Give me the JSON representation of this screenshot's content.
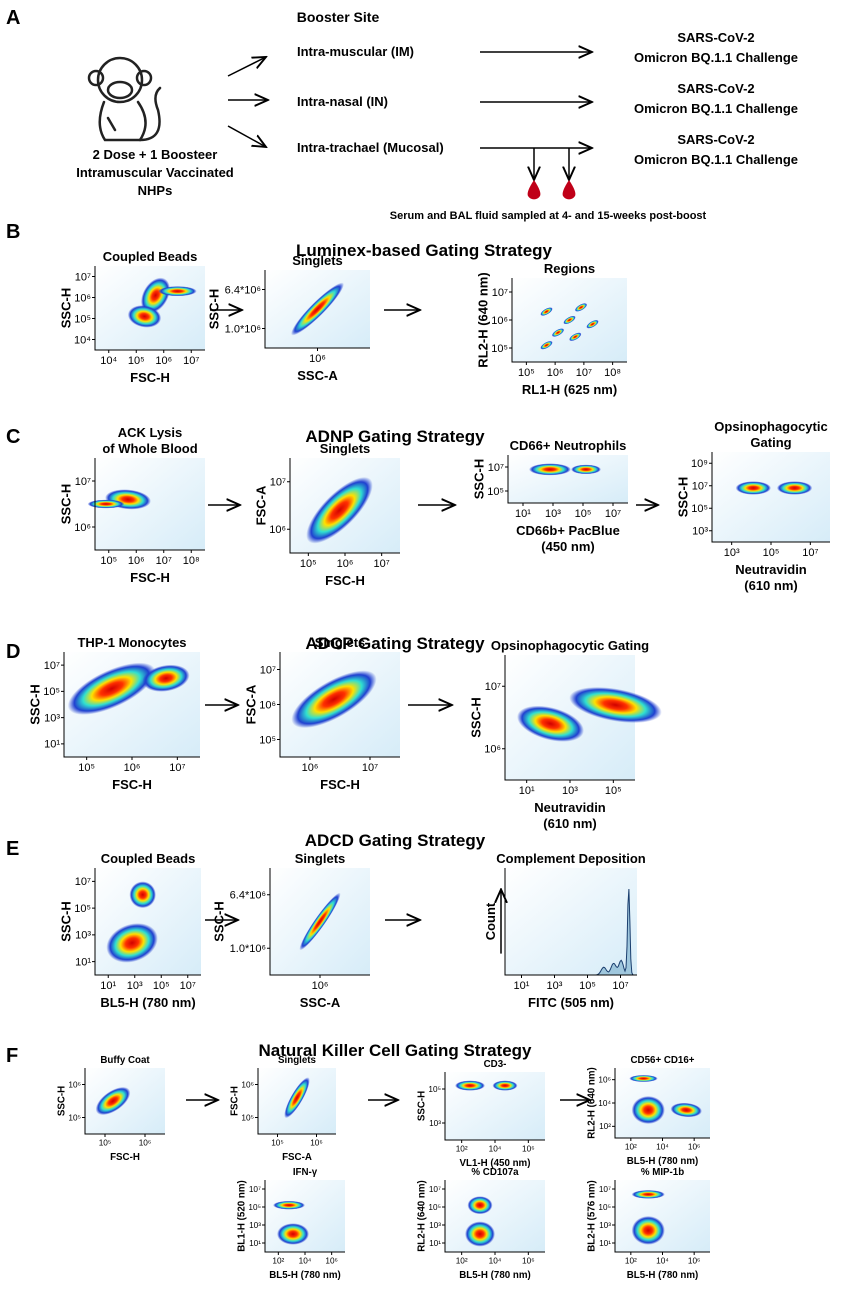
{
  "panel_a": {
    "label": "A",
    "booster_site": "Booster Site",
    "routes": [
      "Intra-muscular (IM)",
      "Intra-nasal (IN)",
      "Intra-trachael (Mucosal)"
    ],
    "challenge": [
      [
        "SARS-CoV-2",
        "Omicron BQ.1.1 Challenge"
      ],
      [
        "SARS-CoV-2",
        "Omicron BQ.1.1 Challenge"
      ],
      [
        "SARS-CoV-2",
        "Omicron BQ.1.1 Challenge"
      ]
    ],
    "subject": [
      "2 Dose + 1 Boosteer",
      "Intramuscular Vaccinated",
      "NHPs"
    ],
    "sampling": "Serum and BAL fluid sampled at 4- and 15-weeks post-boost"
  },
  "panels": [
    {
      "label": "B",
      "title": "Luminex-based Gating Strategy",
      "plots": [
        {
          "title": [
            "Coupled Beads"
          ],
          "xlabel": [
            "FSC-H"
          ],
          "ylabel": "SSC-H",
          "xticks": [
            "10⁴",
            "10⁵",
            "10⁶",
            "10⁷"
          ],
          "yticks": [
            "10⁷",
            "10⁶",
            "10⁵",
            "10⁴"
          ]
        },
        {
          "title": [
            "Singlets"
          ],
          "xlabel": [
            "SSC-A"
          ],
          "ylabel": "SSC-H",
          "xticks": [
            "10⁶"
          ],
          "yticks": [
            "6.4*10⁶",
            "1.0*10⁶"
          ]
        },
        {
          "title": [
            "Regions"
          ],
          "xlabel": [
            "RL1-H (625 nm)"
          ],
          "ylabel": "RL2-H (640 nm)",
          "xticks": [
            "10⁵",
            "10⁶",
            "10⁷",
            "10⁸"
          ],
          "yticks": [
            "10⁷",
            "10⁶",
            "10⁵"
          ]
        }
      ]
    },
    {
      "label": "C",
      "title": "ADNP Gating Strategy",
      "plots": [
        {
          "title": [
            "ACK Lysis",
            "of Whole Blood"
          ],
          "xlabel": [
            "FSC-H"
          ],
          "ylabel": "SSC-H",
          "xticks": [
            "10⁵",
            "10⁶",
            "10⁷",
            "10⁸"
          ],
          "yticks": [
            "10⁷",
            "10⁶"
          ]
        },
        {
          "title": [
            "Singlets"
          ],
          "xlabel": [
            "FSC-H"
          ],
          "ylabel": "FSC-A",
          "xticks": [
            "10⁵",
            "10⁶",
            "10⁷"
          ],
          "yticks": [
            "10⁷",
            "10⁶"
          ]
        },
        {
          "title": [
            "CD66+ Neutrophils"
          ],
          "xlabel": [
            "CD66b+ PacBlue",
            "(450 nm)"
          ],
          "ylabel": "SSC-H",
          "xticks": [
            "10¹",
            "10³",
            "10⁵",
            "10⁷"
          ],
          "yticks": [
            "10⁷",
            "10⁵"
          ]
        },
        {
          "title": [
            "Opsinophagocytic",
            "Gating"
          ],
          "xlabel": [
            "Neutravidin",
            "(610 nm)"
          ],
          "ylabel": "SSC-H",
          "xticks": [
            "10³",
            "10⁵",
            "10⁷"
          ],
          "yticks": [
            "10⁹",
            "10⁷",
            "10⁵",
            "10³"
          ]
        }
      ]
    },
    {
      "label": "D",
      "title": "ADCP Gating Strategy",
      "plots": [
        {
          "title": [
            "THP-1 Monocytes"
          ],
          "xlabel": [
            "FSC-H"
          ],
          "ylabel": "SSC-H",
          "xticks": [
            "10⁵",
            "10⁶",
            "10⁷"
          ],
          "yticks": [
            "10⁷",
            "10⁵",
            "10³",
            "10¹"
          ]
        },
        {
          "title": [
            "Singlets"
          ],
          "xlabel": [
            "FSC-H"
          ],
          "ylabel": "FSC-A",
          "xticks": [
            "10⁶",
            "10⁷"
          ],
          "yticks": [
            "10⁷",
            "10⁶",
            "10⁵"
          ]
        },
        {
          "title": [
            "Opsinophagocytic Gating"
          ],
          "xlabel": [
            "Neutravidin",
            "(610 nm)"
          ],
          "ylabel": "SSC-H",
          "xticks": [
            "10¹",
            "10³",
            "10⁵"
          ],
          "yticks": [
            "10⁷",
            "10⁶"
          ]
        }
      ]
    },
    {
      "label": "E",
      "title": "ADCD Gating Strategy",
      "plots": [
        {
          "title": [
            "Coupled Beads"
          ],
          "xlabel": [
            "BL5-H (780 nm)"
          ],
          "ylabel": "SSC-H",
          "xticks": [
            "10¹",
            "10³",
            "10⁵",
            "10⁷"
          ],
          "yticks": [
            "10⁷",
            "10⁵",
            "10³",
            "10¹"
          ]
        },
        {
          "title": [
            "Singlets"
          ],
          "xlabel": [
            "SSC-A"
          ],
          "ylabel": "SSC-H",
          "xticks": [
            "10⁶"
          ],
          "yticks": [
            "6.4*10⁶",
            "1.0*10⁶"
          ]
        },
        {
          "title": [
            "Complement Deposition"
          ],
          "xlabel": [
            "FITC (505 nm)"
          ],
          "ylabel": "Count",
          "xticks": [
            "10¹",
            "10³",
            "10⁵",
            "10⁷"
          ],
          "yticks": []
        }
      ]
    },
    {
      "label": "F",
      "title": "Natural Killer Cell Gating Strategy",
      "plots": [
        {
          "title": [
            "Buffy Coat"
          ],
          "xlabel": [
            "FSC-H"
          ],
          "ylabel": "SSC-H",
          "xticks": [
            "10⁵",
            "10⁶"
          ],
          "yticks": [
            "10⁶",
            "10⁵"
          ]
        },
        {
          "title": [
            "Singlets"
          ],
          "xlabel": [
            "FSC-A"
          ],
          "ylabel": "FSC-H",
          "xticks": [
            "10⁵",
            "10⁶"
          ],
          "yticks": [
            "10⁶",
            "10⁵"
          ]
        },
        {
          "title": [
            "CD3-"
          ],
          "xlabel": [
            "VL1-H (450 nm)"
          ],
          "ylabel": "SSC-H",
          "xticks": [
            "10²",
            "10⁴",
            "10⁶"
          ],
          "yticks": [
            "10⁵",
            "10³"
          ]
        },
        {
          "title": [
            "CD56+ CD16+"
          ],
          "xlabel": [
            "BL5-H (780 nm)"
          ],
          "ylabel": "RL2-H (640 nm)",
          "xticks": [
            "10²",
            "10⁴",
            "10⁶"
          ],
          "yticks": [
            "10⁶",
            "10⁴",
            "10²"
          ]
        },
        {
          "title": [
            "IFN-γ"
          ],
          "xlabel": [
            "BL5-H (780 nm)"
          ],
          "ylabel": "BL1-H (520 nm)",
          "xticks": [
            "10²",
            "10⁴",
            "10⁶"
          ],
          "yticks": [
            "10⁷",
            "10⁵",
            "10³",
            "10¹"
          ]
        },
        {
          "title": [
            "% CD107a"
          ],
          "xlabel": [
            "BL5-H (780 nm)"
          ],
          "ylabel": "RL2-H (640 nm)",
          "xticks": [
            "10²",
            "10⁴",
            "10⁶"
          ],
          "yticks": [
            "10⁷",
            "10⁵",
            "10³",
            "10¹"
          ]
        },
        {
          "title": [
            "% MIP-1b"
          ],
          "xlabel": [
            "BL5-H (780 nm)"
          ],
          "ylabel": "BL2-H (576 nm)",
          "xticks": [
            "10²",
            "10⁴",
            "10⁶"
          ],
          "yticks": [
            "10⁷",
            "10⁵",
            "10³",
            "10¹"
          ]
        }
      ]
    }
  ]
}
